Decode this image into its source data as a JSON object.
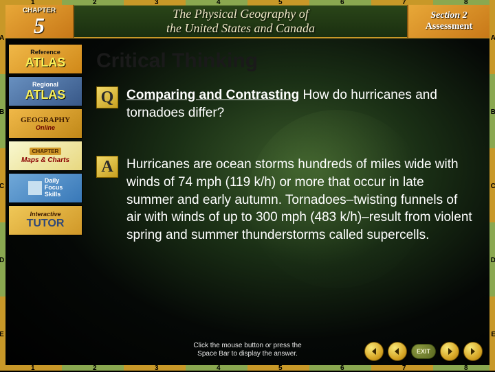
{
  "chapter": {
    "label": "CHAPTER",
    "number": "5"
  },
  "header_title": "The Physical Geography of\nthe United States and Canada",
  "section": {
    "line1": "Section 2",
    "line2": "Assessment"
  },
  "sidebar": {
    "ref_atlas": {
      "label1": "Reference",
      "label2": "ATLAS"
    },
    "reg_atlas": {
      "label1": "Regional",
      "label2": "ATLAS"
    },
    "geo_online": {
      "label1": "GEOGRAPHY",
      "label2": "Online"
    },
    "maps_charts": {
      "badge": "CHAPTER",
      "label": "Maps & Charts"
    },
    "dfs": {
      "label": "Daily\nFocus\nSkills"
    },
    "tutor": {
      "label1": "Interactive",
      "label2": "TUTOR"
    }
  },
  "content": {
    "heading": "Critical Thinking",
    "question": {
      "lead": "Comparing and Contrasting",
      "body": "  How do hurricanes and tornadoes differ?"
    },
    "answer": "Hurricanes are ocean storms hundreds of miles wide with winds of 74 mph (119 k/h) or more that occur in late summer and early autumn. Tornadoes–twisting funnels of air with winds of up to 300 mph (483 k/h)–result from violent spring and summer thunderstorms called supercells."
  },
  "footer_hint": "Click the mouse button or press the\nSpace Bar to display the answer.",
  "nav": {
    "exit": "EXIT"
  },
  "ruler": {
    "top": [
      "1",
      "2",
      "3",
      "4",
      "5",
      "6",
      "7",
      "8"
    ],
    "bottom": [
      "1",
      "2",
      "3",
      "4",
      "5",
      "6",
      "7",
      "8"
    ],
    "left": [
      "A",
      "B",
      "C",
      "D",
      "E"
    ],
    "right": [
      "A",
      "B",
      "C",
      "D",
      "E"
    ]
  },
  "styling": {
    "heading_color": "#1a1a1a",
    "text_color": "#ffffff",
    "accent_gold": "#d8a828",
    "accent_green": "#5a7a3a",
    "heading_fontsize": 30,
    "body_fontsize": 19
  }
}
